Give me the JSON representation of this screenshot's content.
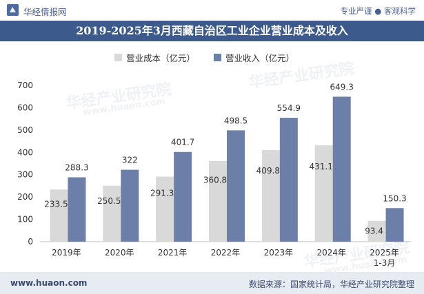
{
  "header": {
    "brand": "华经情报网",
    "tagline": "专业严谨 ● 客观科学",
    "title": "2019-2025年3月西藏自治区工业企业营业成本及收入"
  },
  "watermark": {
    "text_cn": "华经产业研究院",
    "text_url": "www.huaon.com"
  },
  "footer": {
    "site": "www.huaon.com",
    "source": "数据来源：国家统计局，华经产业研究院整理"
  },
  "colors": {
    "cost": "#d9d9d9",
    "revenue": "#6b7fa8",
    "titlebar": "#3c5a8c"
  },
  "chart_data": {
    "type": "bar",
    "categories": [
      "2019年",
      "2020年",
      "2021年",
      "2022年",
      "2023年",
      "2024年",
      "2025年\n1-3月"
    ],
    "series": [
      {
        "name": "营业成本（亿元）",
        "values": [
          233.5,
          250.5,
          291.3,
          360.8,
          409.8,
          431.1,
          93.4
        ],
        "labels": [
          "233.5",
          "250.5",
          "291.3",
          "360.8",
          "409.8",
          "431.1",
          "93.4"
        ]
      },
      {
        "name": "营业收入（亿元）",
        "values": [
          288.3,
          322,
          401.7,
          498.5,
          554.9,
          649.3,
          150.3
        ],
        "labels": [
          "288.3",
          "322",
          "401.7",
          "498.5",
          "554.9",
          "649.3",
          "150.3"
        ]
      }
    ],
    "yticks": [
      "0",
      "100",
      "200",
      "300",
      "400",
      "500",
      "600",
      "700"
    ],
    "ylim": [
      0,
      700
    ],
    "legend_position": "top-center",
    "grid": false
  }
}
